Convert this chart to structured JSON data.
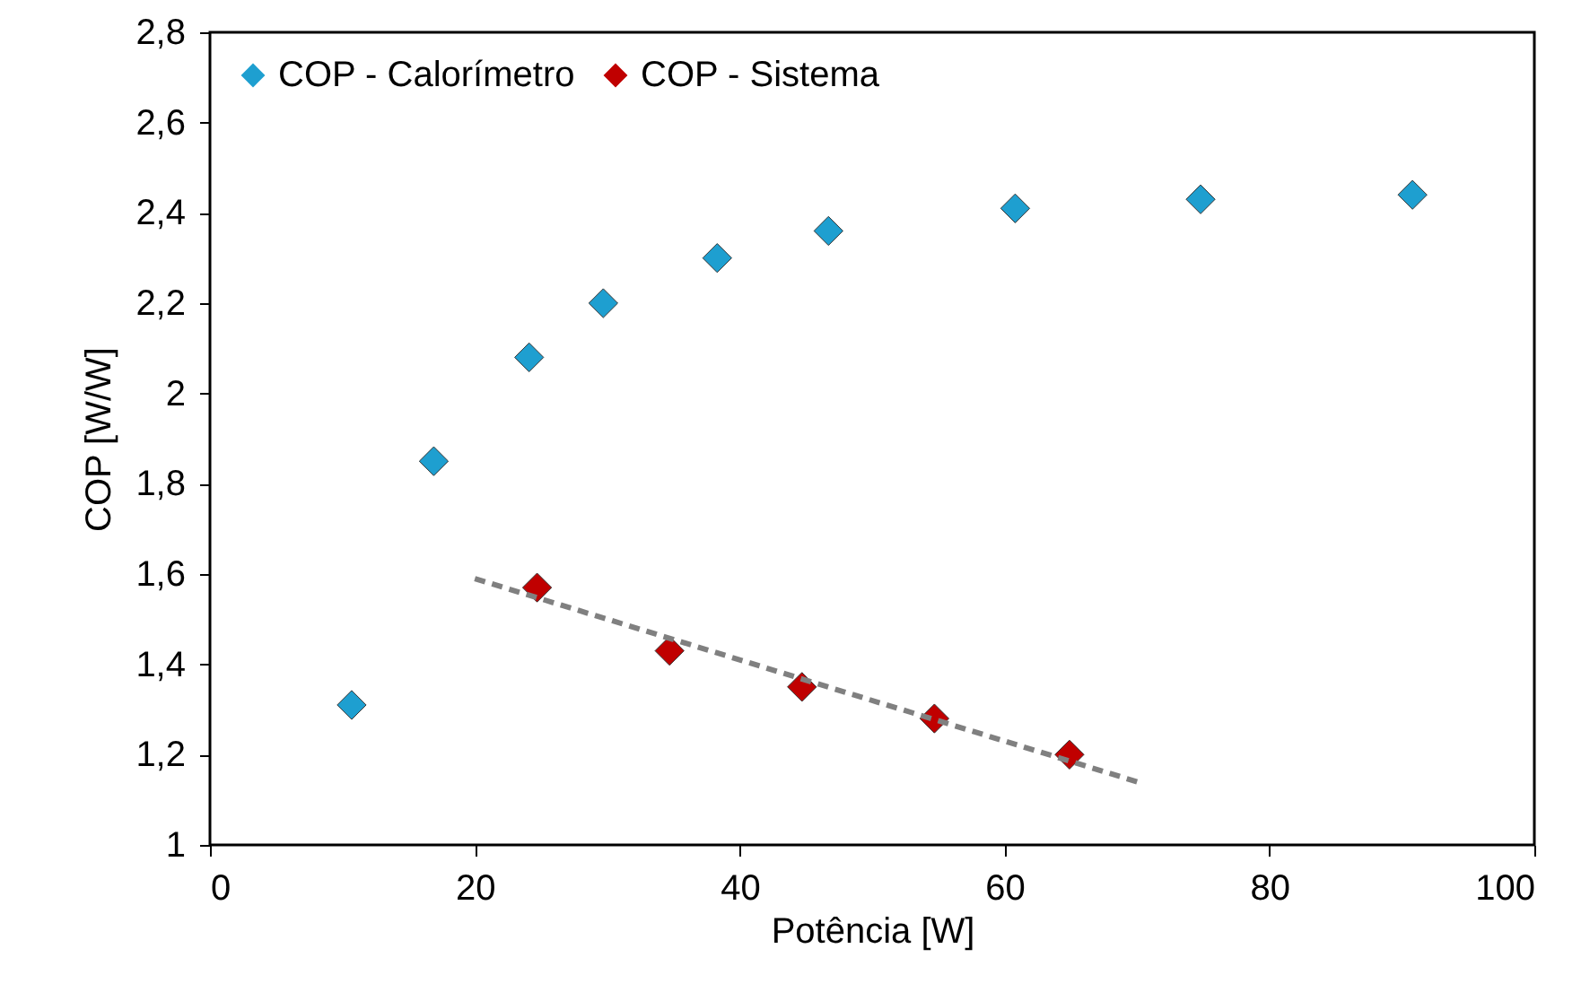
{
  "chart_data": {
    "type": "scatter",
    "xlabel": "Potência [W]",
    "ylabel": "COP [W/W]",
    "xlim": [
      0,
      100
    ],
    "xticks": [
      0,
      20,
      40,
      60,
      80,
      100
    ],
    "ylim": [
      1,
      2.8
    ],
    "yticks": [
      1,
      {
        "value": 1.2,
        "label": "1,2"
      },
      {
        "value": 1.4,
        "label": "1,4"
      },
      {
        "value": 1.6,
        "label": "1,6"
      },
      {
        "value": 1.8,
        "label": "1,8"
      },
      2,
      {
        "value": 2.2,
        "label": "2,2"
      },
      {
        "value": 2.4,
        "label": "2,4"
      },
      {
        "value": 2.6,
        "label": "2,6"
      },
      {
        "value": 2.8,
        "label": "2,8"
      }
    ],
    "marker": "diamond",
    "legend": "top left",
    "series": [
      {
        "name": "COP - Calorímetro",
        "color": "#1e9fd0",
        "x": [
          10.7,
          16.9,
          24.1,
          29.7,
          38.3,
          46.7,
          60.8,
          74.8,
          90.8
        ],
        "values": [
          1.31,
          1.85,
          2.08,
          2.2,
          2.3,
          2.36,
          2.41,
          2.43,
          2.44
        ]
      },
      {
        "name": "COP - Sistema",
        "color": "#c00000",
        "x": [
          24.7,
          34.7,
          44.7,
          54.7,
          64.9
        ],
        "values": [
          1.57,
          1.43,
          1.35,
          1.28,
          1.2
        ]
      },
      {
        "type": "line",
        "color": "#808080",
        "line_style": "dashed",
        "marker": "none",
        "x": [
          20,
          70
        ],
        "values": [
          1.59,
          1.14
        ]
      }
    ]
  }
}
